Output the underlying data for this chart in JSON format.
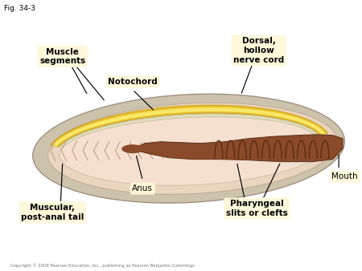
{
  "fig_label": "Fig. 34-3",
  "bg_color": "#ffffff",
  "fig_size": [
    4.5,
    3.38
  ],
  "dpi": 100,
  "copyright": "Copyright © 2008 Pearson Education, Inc., publishing as Pearson Benjamin Cummings",
  "labels": {
    "muscle_segments": "Muscle\nsegments",
    "notochord": "Notochord",
    "dorsal_nerve": "Dorsal,\nhollow\nnerve cord",
    "anus": "Anus",
    "pharyngeal": "Pharyngeal\nslits or clefts",
    "mouth": "Mouth",
    "muscular_tail": "Muscular,\npost-anal tail"
  },
  "label_bg": "#fdf8d8",
  "body_outer_color": "#d4c8b0",
  "body_inner_color": "#f2dece",
  "notochord_color": "#e8c030",
  "notochord_light": "#f5dc60",
  "nerve_cord_color": "#e0dab0",
  "gut_color": "#8b5533",
  "muscle_chevron_color": "#d4a898",
  "tail_fill": "#ddd0b0"
}
